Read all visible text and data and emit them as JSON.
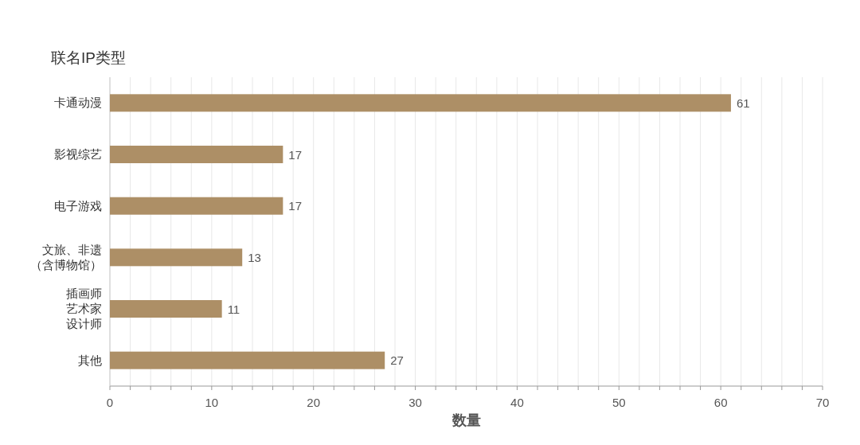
{
  "chart_data": {
    "type": "bar",
    "orientation": "horizontal",
    "title": "联名IP类型",
    "xlabel": "数量",
    "categories": [
      "卡通动漫",
      "影视综艺",
      "电子游戏",
      "文旅、非遗（含博物馆）",
      "插画师艺术家设计师",
      "其他"
    ],
    "values": [
      61,
      17,
      17,
      13,
      11,
      27
    ],
    "color": "#ad8f66",
    "data_labels": true,
    "grid": "x",
    "xlim": [
      0,
      70
    ],
    "xticks": [
      0,
      {
        "value": 2,
        "label": null
      },
      {
        "value": 4,
        "label": null
      },
      {
        "value": 6,
        "label": null
      },
      {
        "value": 8,
        "label": null
      },
      10,
      {
        "value": 12,
        "label": null
      },
      {
        "value": 14,
        "label": null
      },
      {
        "value": 16,
        "label": null
      },
      {
        "value": 18,
        "label": null
      },
      20,
      {
        "value": 22,
        "label": null
      },
      {
        "value": 24,
        "label": null
      },
      {
        "value": 26,
        "label": null
      },
      {
        "value": 28,
        "label": null
      },
      30,
      {
        "value": 32,
        "label": null
      },
      {
        "value": 34,
        "label": null
      },
      {
        "value": 36,
        "label": null
      },
      {
        "value": 38,
        "label": null
      },
      40,
      {
        "value": 42,
        "label": null
      },
      {
        "value": 44,
        "label": null
      },
      {
        "value": 46,
        "label": null
      },
      {
        "value": 48,
        "label": null
      },
      50,
      {
        "value": 52,
        "label": null
      },
      {
        "value": 54,
        "label": null
      },
      {
        "value": 56,
        "label": null
      },
      {
        "value": 58,
        "label": null
      },
      60,
      {
        "value": 62,
        "label": null
      },
      {
        "value": 64,
        "label": null
      },
      {
        "value": 66,
        "label": null
      },
      {
        "value": 68,
        "label": null
      },
      70
    ]
  }
}
